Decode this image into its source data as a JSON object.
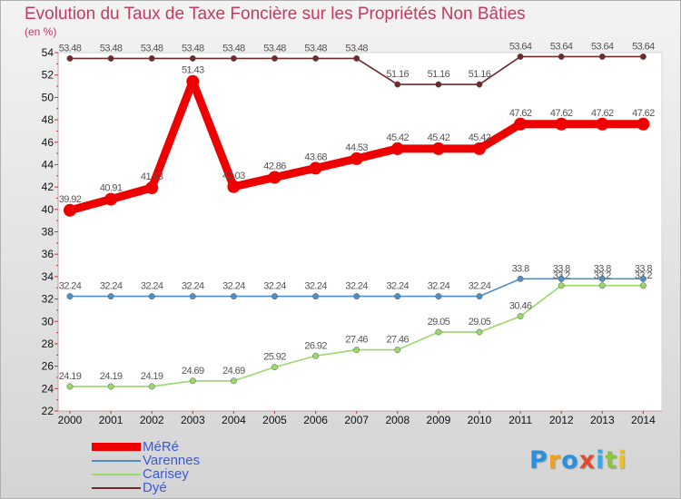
{
  "header": {
    "title": "Evolution du Taux de Taxe Foncière sur les Propriétés Non Bâties",
    "unit": "(en %)"
  },
  "chart_data": {
    "type": "line",
    "title": "Evolution du Taux de Taxe Foncière sur les Propriétés Non Bâties",
    "ylabel": "(en %)",
    "xlabel": "",
    "x": [
      2000,
      2001,
      2002,
      2003,
      2004,
      2005,
      2006,
      2007,
      2008,
      2009,
      2010,
      2011,
      2012,
      2013,
      2014
    ],
    "ylim": [
      22,
      54
    ],
    "yticks": [
      22,
      24,
      26,
      28,
      30,
      32,
      34,
      36,
      38,
      40,
      42,
      44,
      46,
      48,
      50,
      52,
      54
    ],
    "grid": false,
    "legend_position": "bottom-left",
    "series": [
      {
        "name": "Dyé",
        "color": "#6d2b2b",
        "style": "thin",
        "values": [
          53.48,
          53.48,
          53.48,
          53.48,
          53.48,
          53.48,
          53.48,
          53.48,
          51.16,
          51.16,
          51.16,
          53.64,
          53.64,
          53.64,
          53.64
        ],
        "labels": [
          "53.48",
          "53.48",
          "53.48",
          "53.48",
          "53.48",
          "53.48",
          "53.48",
          "53.48",
          "51.16",
          "51.16",
          "51.16",
          "53.64",
          "53.64",
          "53.64",
          "53.64"
        ]
      },
      {
        "name": "Carisey",
        "color": "#9ad86a",
        "style": "thin",
        "values": [
          24.19,
          24.19,
          24.19,
          24.69,
          24.69,
          25.92,
          26.92,
          27.46,
          27.46,
          29.05,
          29.05,
          30.46,
          33.2,
          33.2,
          33.2
        ],
        "labels": [
          "24.19",
          "24.19",
          "24.19",
          "24.69",
          "24.69",
          "25.92",
          "26.92",
          "27.46",
          "27.46",
          "29.05",
          "29.05",
          "30.46",
          "33.2",
          "33.2",
          "33.2"
        ]
      },
      {
        "name": "Varennes",
        "color": "#4f8fc6",
        "style": "thin",
        "values": [
          32.24,
          32.24,
          32.24,
          32.24,
          32.24,
          32.24,
          32.24,
          32.24,
          32.24,
          32.24,
          32.24,
          33.8,
          33.8,
          33.8,
          33.8
        ],
        "labels": [
          "32.24",
          "32.24",
          "32.24",
          "32.24",
          "32.24",
          "32.24",
          "32.24",
          "32.24",
          "32.24",
          "32.24",
          "32.24",
          "33.8",
          "33.8",
          "33.8",
          "33.8"
        ]
      },
      {
        "name": "MéRé",
        "color": "#ee0000",
        "style": "thick",
        "values": [
          39.92,
          40.91,
          41.93,
          51.43,
          42.03,
          42.86,
          43.68,
          44.53,
          45.42,
          45.42,
          45.42,
          47.62,
          47.62,
          47.62,
          47.62
        ],
        "labels": [
          "39.92",
          "40.91",
          "41.93",
          "51.43",
          "42.03",
          "42.86",
          "43.68",
          "44.53",
          "45.42",
          "45.42",
          "45.42",
          "47.62",
          "47.62",
          "47.62",
          "47.62"
        ]
      }
    ]
  },
  "legend": {
    "items": [
      {
        "label": "MéRé",
        "color": "#ee0000"
      },
      {
        "label": "Varennes",
        "color": "#4f8fc6"
      },
      {
        "label": "Carisey",
        "color": "#9ad86a"
      },
      {
        "label": "Dyé",
        "color": "#6d2b2b"
      }
    ]
  },
  "logo": {
    "letters": [
      {
        "ch": "P",
        "color": "#2b8fe0"
      },
      {
        "ch": "r",
        "color": "#f0a020"
      },
      {
        "ch": "o",
        "color": "#2b8fe0"
      },
      {
        "ch": "x",
        "color": "#e44b2a"
      },
      {
        "ch": "i",
        "color": "#3aa6e6"
      },
      {
        "ch": "t",
        "color": "#8cc63f"
      },
      {
        "ch": "i",
        "color": "#f0c020"
      }
    ]
  }
}
